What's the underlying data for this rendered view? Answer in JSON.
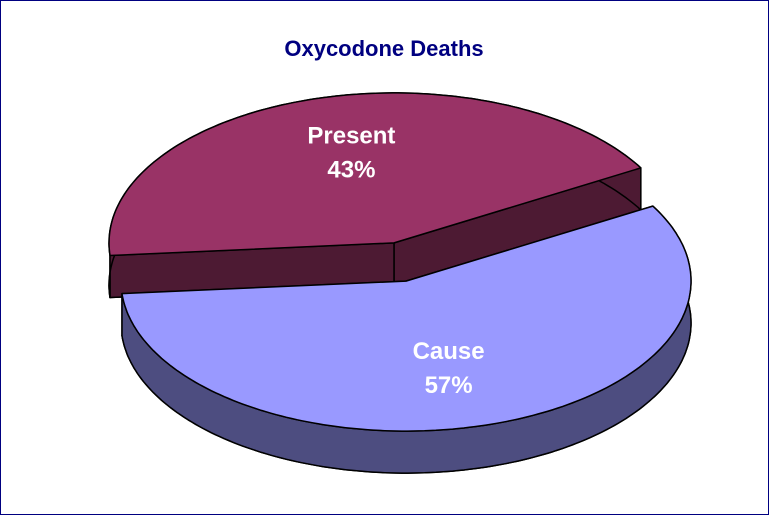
{
  "chart_data": {
    "type": "pie",
    "title": "Oxycodone Deaths",
    "categories": [
      "Present",
      "Cause"
    ],
    "values": [
      43,
      57
    ],
    "value_labels": [
      "43%",
      "57%"
    ],
    "colors": [
      "#993366",
      "#9999ff"
    ]
  }
}
